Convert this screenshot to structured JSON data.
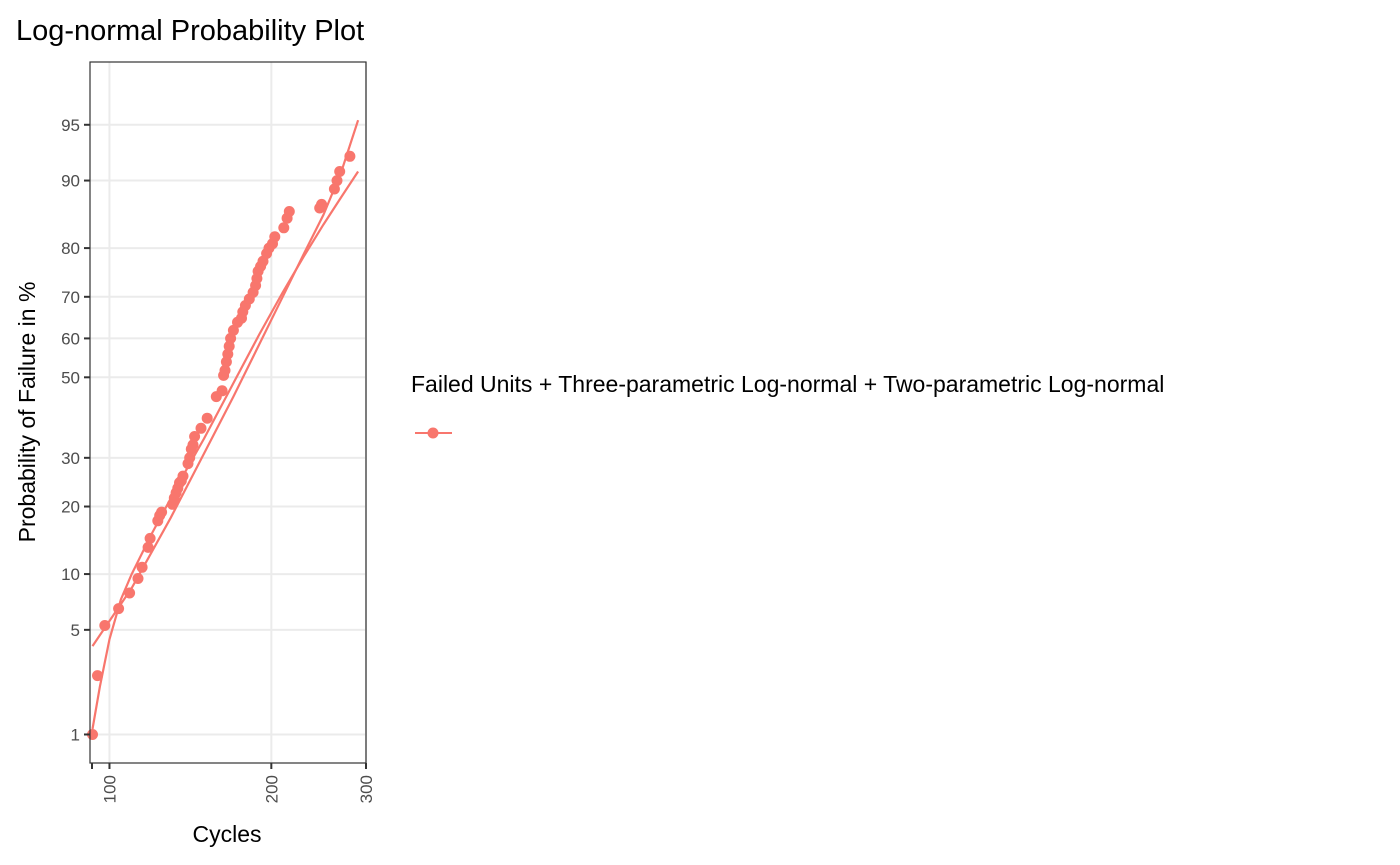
{
  "chart_data": {
    "type": "scatter",
    "title": "Log-normal Probability Plot",
    "xlabel": "Cycles",
    "ylabel": "Probability of Failure in %",
    "x_scale": "log",
    "y_scale": "normal-probability",
    "xlim": [
      92,
      300
    ],
    "ylim": [
      0.6,
      98
    ],
    "x_ticks": [
      100,
      200,
      300
    ],
    "x_tick_labels": [
      "100",
      "200",
      "300"
    ],
    "y_ticks": [
      1,
      5,
      10,
      20,
      30,
      50,
      60,
      70,
      80,
      90,
      95
    ],
    "y_tick_labels": [
      "1",
      "5",
      "10",
      "20",
      "30",
      "50",
      "60",
      "70",
      "80",
      "90",
      "95"
    ],
    "grid": true,
    "legend": {
      "position": "right",
      "title": "Failed Units + Three-parametric Log-normal + Two-parametric Log-normal",
      "color": "#F8766D"
    },
    "series": [
      {
        "type": "points",
        "color": "#F8766D",
        "x": [
          93,
          95,
          98,
          104,
          109,
          113,
          115,
          118,
          119,
          123,
          124,
          125,
          131,
          132,
          133,
          134,
          135,
          136,
          137,
          140,
          141,
          142,
          143,
          144,
          148,
          152,
          158,
          162,
          163,
          164,
          165,
          166,
          167,
          168,
          170,
          173,
          176,
          177,
          179,
          182,
          185,
          187,
          188,
          189,
          191,
          193,
          196,
          198,
          201,
          203,
          211,
          214,
          216,
          246,
          248,
          262,
          265,
          268,
          280
        ],
        "y": [
          1.0,
          2.6,
          5.3,
          6.6,
          8.0,
          9.5,
          10.8,
          13.4,
          14.7,
          17.5,
          18.4,
          19.0,
          20.4,
          21.6,
          22.6,
          23.5,
          24.6,
          25.0,
          26.0,
          28.7,
          30.0,
          32.0,
          33.0,
          35.0,
          37.0,
          39.5,
          45.0,
          46.5,
          50.5,
          51.8,
          54.0,
          56.0,
          58.0,
          60.0,
          62.0,
          64.0,
          65.0,
          66.5,
          68.0,
          69.5,
          71.0,
          72.5,
          74.0,
          75.5,
          76.5,
          77.5,
          79.0,
          80.0,
          80.8,
          82.0,
          83.5,
          85.0,
          86.0,
          86.5,
          87.0,
          89.0,
          90.0,
          91.0,
          92.5
        ]
      },
      {
        "type": "line",
        "color": "#F8766D",
        "x": [
          93,
          96,
          100,
          105,
          110,
          120,
          130,
          140,
          150,
          170,
          190,
          210,
          230,
          250,
          270,
          290
        ],
        "y": [
          1.1,
          2.2,
          4.4,
          7.4,
          10.0,
          15.5,
          21.5,
          28.0,
          34.5,
          48.5,
          61.0,
          71.0,
          78.5,
          84.0,
          88.0,
          91.0
        ]
      },
      {
        "type": "line",
        "color": "#F8766D",
        "x": [
          93,
          110,
          130,
          150,
          170,
          190,
          210,
          230,
          250,
          270,
          290
        ],
        "y": [
          4.0,
          8.5,
          18.0,
          31.0,
          45.0,
          58.5,
          70.0,
          79.0,
          85.5,
          91.0,
          95.3
        ]
      }
    ]
  }
}
